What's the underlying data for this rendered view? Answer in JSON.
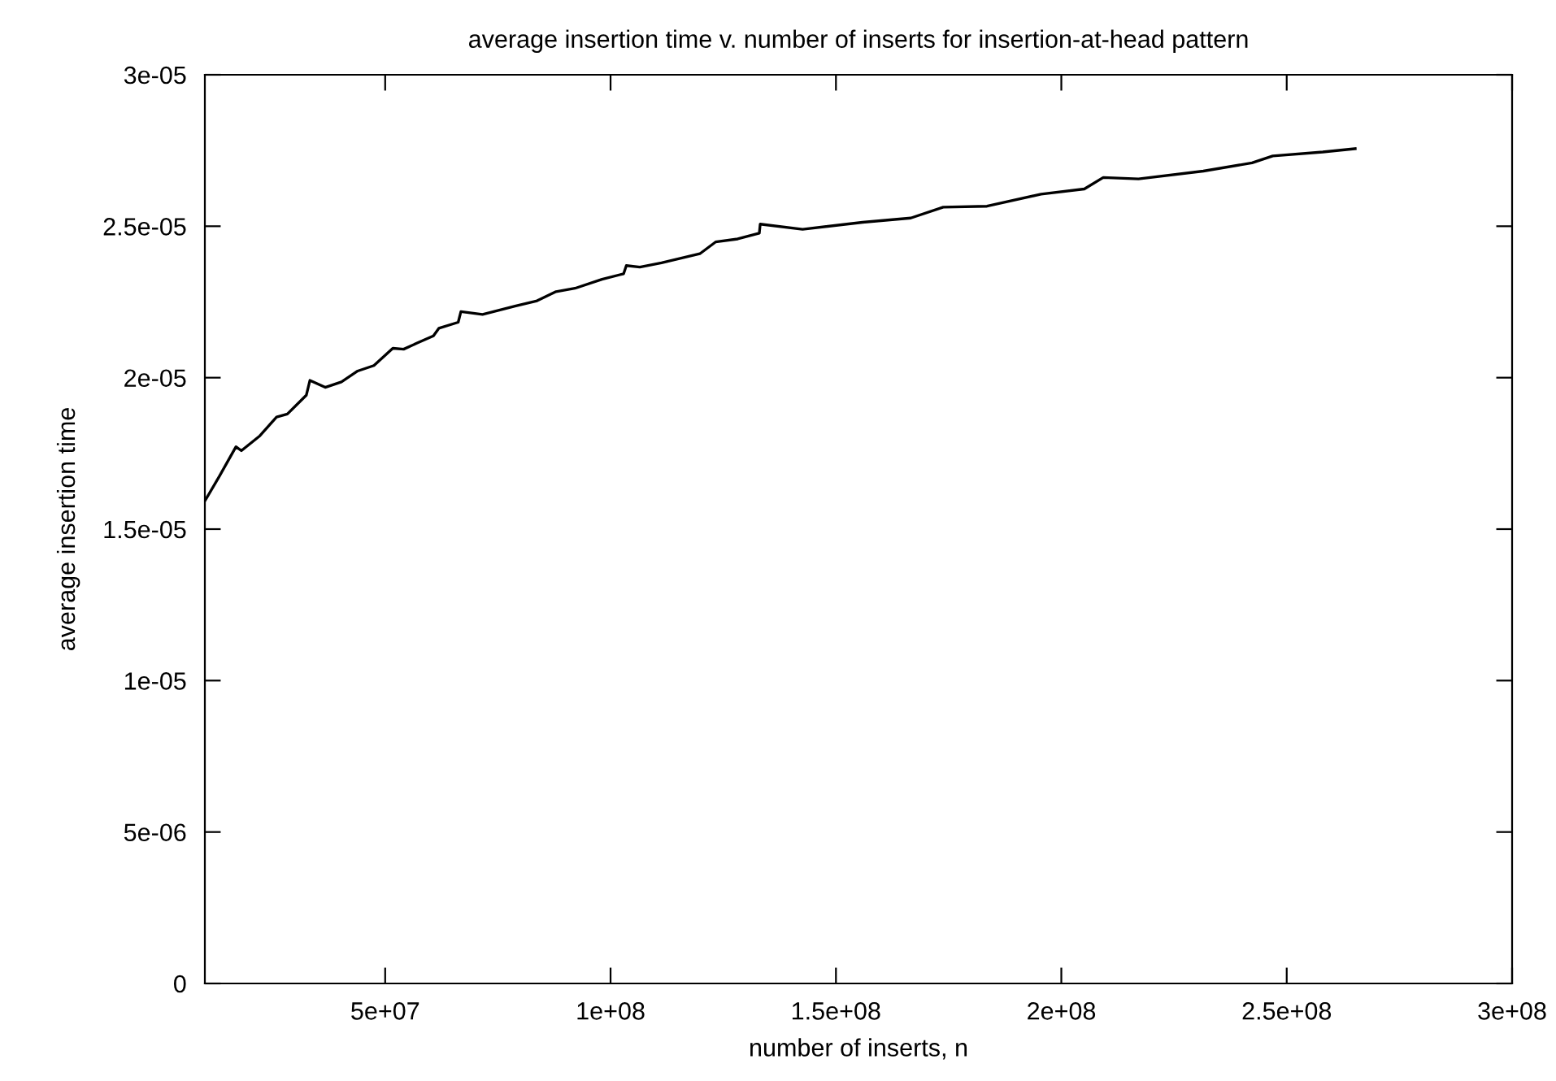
{
  "chart_data": {
    "type": "line",
    "title": "average insertion time v. number of inserts for insertion-at-head pattern",
    "xlabel": "number of inserts, n",
    "ylabel": "average insertion time",
    "xlim": [
      10000000,
      300000000
    ],
    "ylim": [
      0,
      3e-05
    ],
    "xticks": [
      {
        "value": 50000000,
        "label": "5e+07"
      },
      {
        "value": 100000000,
        "label": "1e+08"
      },
      {
        "value": 150000000,
        "label": "1.5e+08"
      },
      {
        "value": 200000000,
        "label": "2e+08"
      },
      {
        "value": 250000000,
        "label": "2.5e+08"
      },
      {
        "value": 300000000,
        "label": "3e+08"
      }
    ],
    "yticks": [
      {
        "value": 0,
        "label": "0"
      },
      {
        "value": 5e-06,
        "label": "5e-06"
      },
      {
        "value": 1e-05,
        "label": "1e-05"
      },
      {
        "value": 1.5e-05,
        "label": "1.5e-05"
      },
      {
        "value": 2e-05,
        "label": "2e-05"
      },
      {
        "value": 2.5e-05,
        "label": "2.5e-05"
      },
      {
        "value": 3e-05,
        "label": "3e-05"
      }
    ],
    "grid": false,
    "line_style": "solid",
    "series": [
      {
        "color": "#000000",
        "x": [
          10000000,
          13200000,
          16900000,
          18100000,
          22200000,
          25900000,
          28300000,
          32500000,
          33300000,
          36700000,
          40300000,
          43900000,
          47500000,
          51700000,
          54100000,
          57200000,
          60700000,
          61900000,
          66200000,
          66800000,
          71600000,
          78800000,
          83700000,
          87900000,
          92100000,
          98100000,
          102900000,
          103500000,
          106500000,
          111300000,
          119800000,
          123300000,
          128200000,
          133000000,
          133200000,
          142600000,
          155900000,
          166600000,
          173800000,
          183500000,
          195500000,
          205100000,
          209300000,
          217100000,
          231500000,
          242300000,
          246900000,
          258000000,
          265200000
        ],
        "values": [
          1.593e-05,
          1.674e-05,
          1.772e-05,
          1.759e-05,
          1.808e-05,
          1.87e-05,
          1.88e-05,
          1.942e-05,
          1.991e-05,
          1.968e-05,
          1.986e-05,
          2.022e-05,
          2.04e-05,
          2.097e-05,
          2.094e-05,
          2.115e-05,
          2.138e-05,
          2.163e-05,
          2.183e-05,
          2.218e-05,
          2.209e-05,
          2.236e-05,
          2.254e-05,
          2.284e-05,
          2.295e-05,
          2.325e-05,
          2.343e-05,
          2.37e-05,
          2.365e-05,
          2.379e-05,
          2.409e-05,
          2.448e-05,
          2.458e-05,
          2.477e-05,
          2.507e-05,
          2.49e-05,
          2.513e-05,
          2.527e-05,
          2.563e-05,
          2.566e-05,
          2.606e-05,
          2.623e-05,
          2.661e-05,
          2.656e-05,
          2.682e-05,
          2.709e-05,
          2.732e-05,
          2.745e-05,
          2.756e-05
        ]
      }
    ]
  }
}
